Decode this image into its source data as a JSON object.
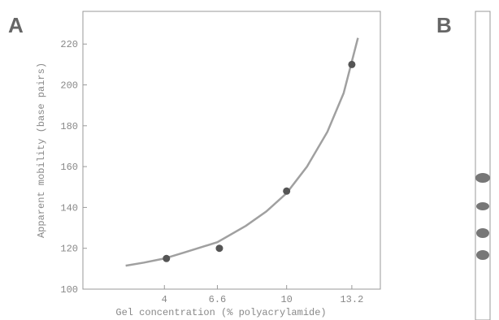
{
  "panels": {
    "left": "A",
    "right": "B"
  },
  "chart_data": {
    "type": "scatter",
    "x_label": "Gel concentration (% polyacrylamide)",
    "y_label": "Apparent mobility (base pairs)",
    "xlim": [
      0,
      14.6
    ],
    "xticks": [
      4,
      6.6,
      10,
      13.2
    ],
    "ylim": [
      100,
      236
    ],
    "yticks": [
      100,
      120,
      140,
      160,
      180,
      200,
      220
    ],
    "series": [
      {
        "type": "line",
        "color": "#a0a0a0",
        "x": [
          2.1,
          3,
          4,
          5,
          6.6,
          8,
          9,
          10,
          11,
          12,
          12.8,
          13.5
        ],
        "values": [
          111.5,
          113,
          115,
          118,
          123,
          131,
          138,
          147,
          160,
          177,
          196,
          223
        ]
      },
      {
        "type": "scatter",
        "color": "#555555",
        "x": [
          4.1,
          6.7,
          10.0,
          13.2
        ],
        "values": [
          115,
          120,
          148,
          210
        ]
      }
    ]
  }
}
